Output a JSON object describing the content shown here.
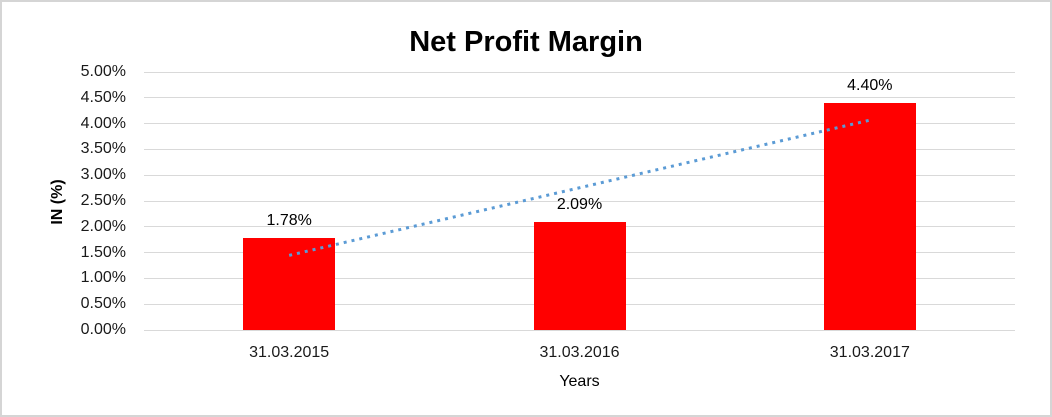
{
  "chart_data": {
    "type": "bar",
    "title": "Net Profit Margin",
    "xlabel": "Years",
    "ylabel": "IN (%)",
    "categories": [
      "31.03.2015",
      "31.03.2016",
      "31.03.2017"
    ],
    "values": [
      1.78,
      2.09,
      4.4
    ],
    "data_labels": [
      "1.78%",
      "2.09%",
      "4.40%"
    ],
    "ylim": [
      0,
      5
    ],
    "ytick_step": 0.5,
    "ytick_labels": [
      "0.00%",
      "0.50%",
      "1.00%",
      "1.50%",
      "2.00%",
      "2.50%",
      "3.00%",
      "3.50%",
      "4.00%",
      "4.50%",
      "5.00%"
    ],
    "grid": true,
    "legend_position": "none",
    "bar_color": "#ff0000",
    "gridline_color": "#d9d9d9",
    "trendline": {
      "type": "linear",
      "style": "dotted",
      "color": "#5b9bd5"
    }
  }
}
